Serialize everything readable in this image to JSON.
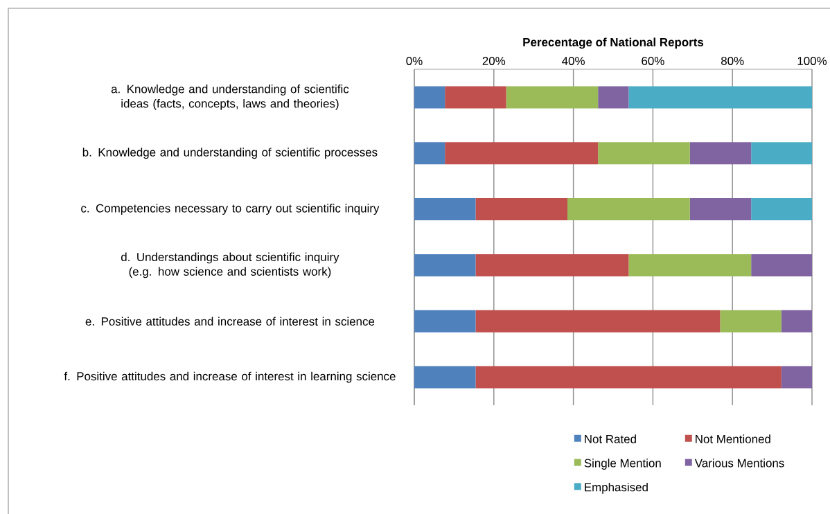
{
  "chart_data": {
    "type": "bar",
    "orientation": "horizontal",
    "stacked": true,
    "xlabel": "Perecentage of National Reports",
    "categories": [
      "a. Knowledge and understanding of scientific ideas (facts, concepts, laws and theories)",
      "b. Knowledge and understanding of scientific processes",
      "c. Competencies necessary to carry out scientific inquiry",
      "d. Understandings about scientific inquiry (e.g. how science and scientists work)",
      "e. Positive attitudes and increase of interest in science",
      "f. Positive attitudes and increase of interest in learning science"
    ],
    "series": [
      {
        "name": "Not Rated",
        "color": "#4f81bd",
        "values": [
          7.7,
          7.7,
          15.4,
          15.4,
          15.4,
          15.4
        ]
      },
      {
        "name": "Not Mentioned",
        "color": "#c0504d",
        "values": [
          15.4,
          38.5,
          23.1,
          38.5,
          61.5,
          76.9
        ]
      },
      {
        "name": "Single Mention",
        "color": "#9bbb59",
        "values": [
          23.1,
          23.1,
          30.8,
          30.8,
          15.4,
          0
        ]
      },
      {
        "name": "Various Mentions",
        "color": "#8064a2",
        "values": [
          7.7,
          15.4,
          15.4,
          15.3,
          7.7,
          7.7
        ]
      },
      {
        "name": "Emphasised",
        "color": "#4bacc6",
        "values": [
          46.1,
          15.3,
          15.3,
          0,
          0,
          0
        ]
      }
    ],
    "xlim": [
      0,
      100
    ],
    "xticks": [
      {
        "value": 0,
        "label": "0%"
      },
      {
        "value": 20,
        "label": "20%"
      },
      {
        "value": 40,
        "label": "40%"
      },
      {
        "value": 60,
        "label": "60%"
      },
      {
        "value": 80,
        "label": "80%"
      },
      {
        "value": 100,
        "label": "100%"
      }
    ],
    "grid": "x",
    "legend": "bottom"
  }
}
